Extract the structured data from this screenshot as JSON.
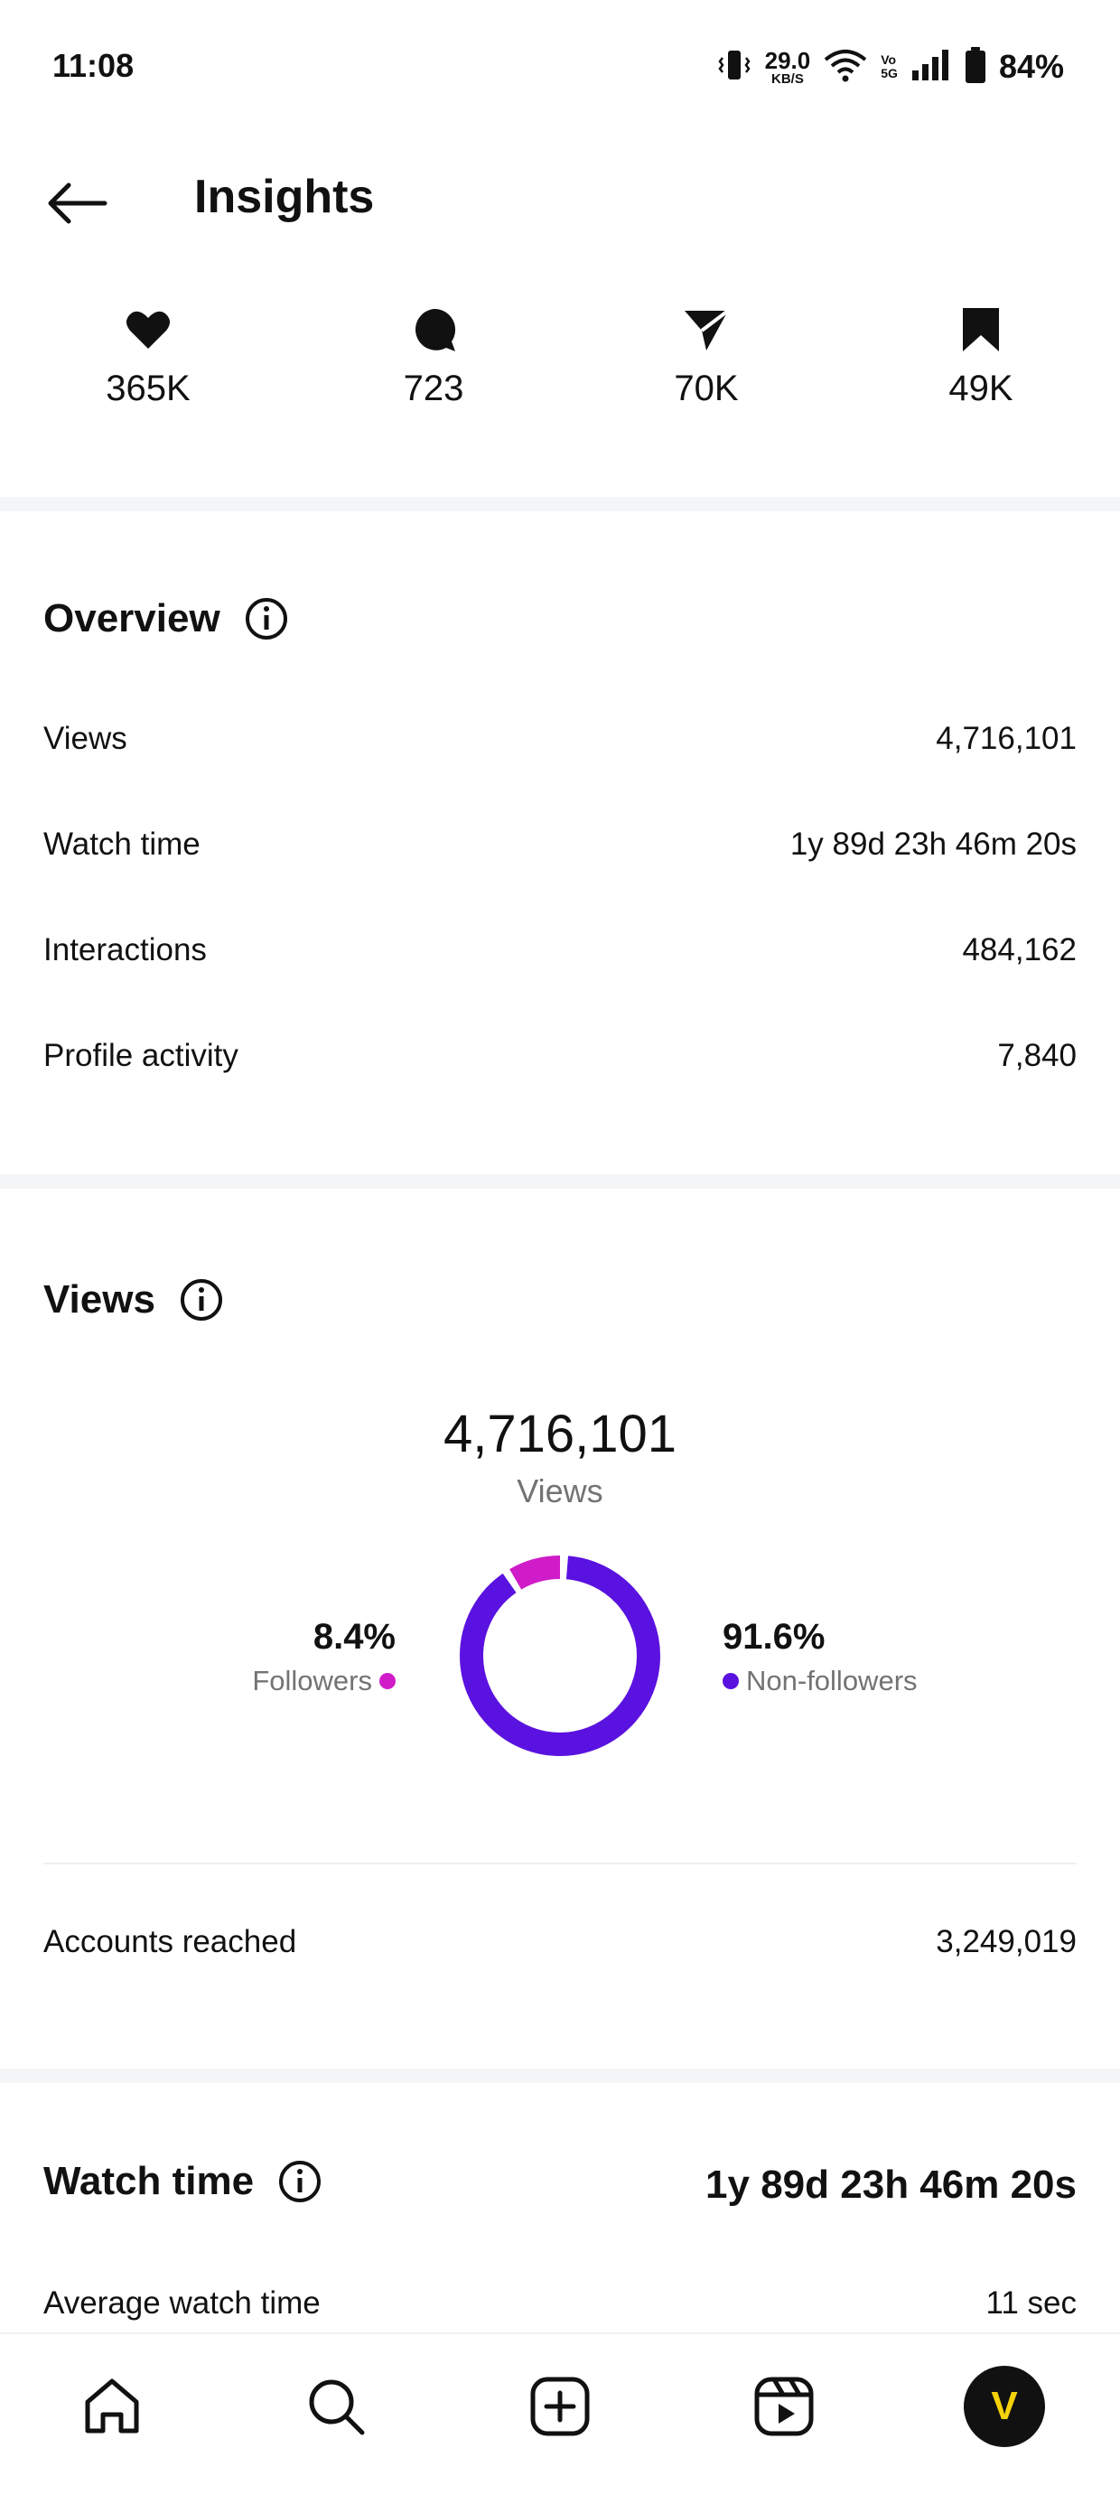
{
  "status_bar": {
    "time": "11:08",
    "net_speed_value": "29.0",
    "net_speed_unit": "KB/S",
    "volte_top": "Vo",
    "volte_bottom": "5G",
    "battery": "84%"
  },
  "header": {
    "title": "Insights"
  },
  "engagement": [
    {
      "icon": "heart-icon",
      "value": "365K"
    },
    {
      "icon": "comment-icon",
      "value": "723"
    },
    {
      "icon": "share-icon",
      "value": "70K"
    },
    {
      "icon": "bookmark-icon",
      "value": "49K"
    }
  ],
  "overview": {
    "title": "Overview",
    "rows": [
      {
        "label": "Views",
        "value": "4,716,101"
      },
      {
        "label": "Watch time",
        "value": "1y 89d 23h 46m 20s"
      },
      {
        "label": "Interactions",
        "value": "484,162"
      },
      {
        "label": "Profile activity",
        "value": "7,840"
      }
    ]
  },
  "views": {
    "title": "Views",
    "total": "4,716,101",
    "total_label": "Views",
    "followers_pct": "8.4%",
    "followers_label": "Followers",
    "nonfollowers_pct": "91.6%",
    "nonfollowers_label": "Non-followers",
    "followers_fraction": 0.084,
    "followers_color": "#d01cc8",
    "nonfollowers_color": "#5a12e0",
    "accounts_reached_label": "Accounts reached",
    "accounts_reached_value": "3,249,019"
  },
  "watch_time": {
    "title": "Watch time",
    "value": "1y 89d 23h 46m 20s",
    "avg_label": "Average watch time",
    "avg_value": "11 sec"
  },
  "bottom_nav": {
    "items": [
      "home-icon",
      "search-icon",
      "create-icon",
      "reels-icon",
      "profile-avatar"
    ],
    "avatar_letter": "V"
  }
}
